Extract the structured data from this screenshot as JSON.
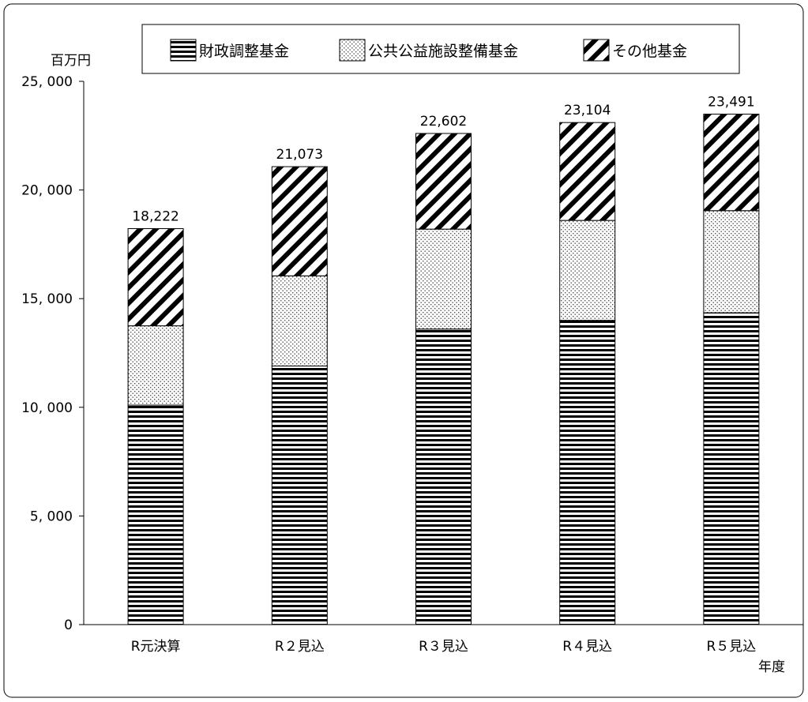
{
  "chart_data": {
    "type": "bar",
    "stacked": true,
    "y_unit_label": "百万円",
    "x_unit_label": "年度",
    "categories": [
      "R元決算",
      "R２見込",
      "R３見込",
      "R４見込",
      "R５見込"
    ],
    "series": [
      {
        "name": "財政調整基金",
        "pattern": "horizontal-stripes",
        "values": [
          10100,
          11900,
          13600,
          14000,
          14350
        ]
      },
      {
        "name": "公共公益施設整備基金",
        "pattern": "dots",
        "values": [
          3650,
          4150,
          4600,
          4600,
          4700
        ]
      },
      {
        "name": "その他基金",
        "pattern": "diagonal-stripes",
        "values": [
          4472,
          5023,
          4402,
          4504,
          4441
        ]
      }
    ],
    "totals": [
      18222,
      21073,
      22602,
      23104,
      23491
    ],
    "total_labels": [
      "18,222",
      "21,073",
      "22,602",
      "23,104",
      "23,491"
    ],
    "ylim": [
      0,
      25000
    ],
    "y_ticks": [
      0,
      5000,
      10000,
      15000,
      20000,
      25000
    ],
    "y_tick_labels": [
      "0",
      "5, 000",
      "10, 000",
      "15, 000",
      "20, 000",
      "25, 000"
    ],
    "legend_position": "top",
    "grid": false
  }
}
